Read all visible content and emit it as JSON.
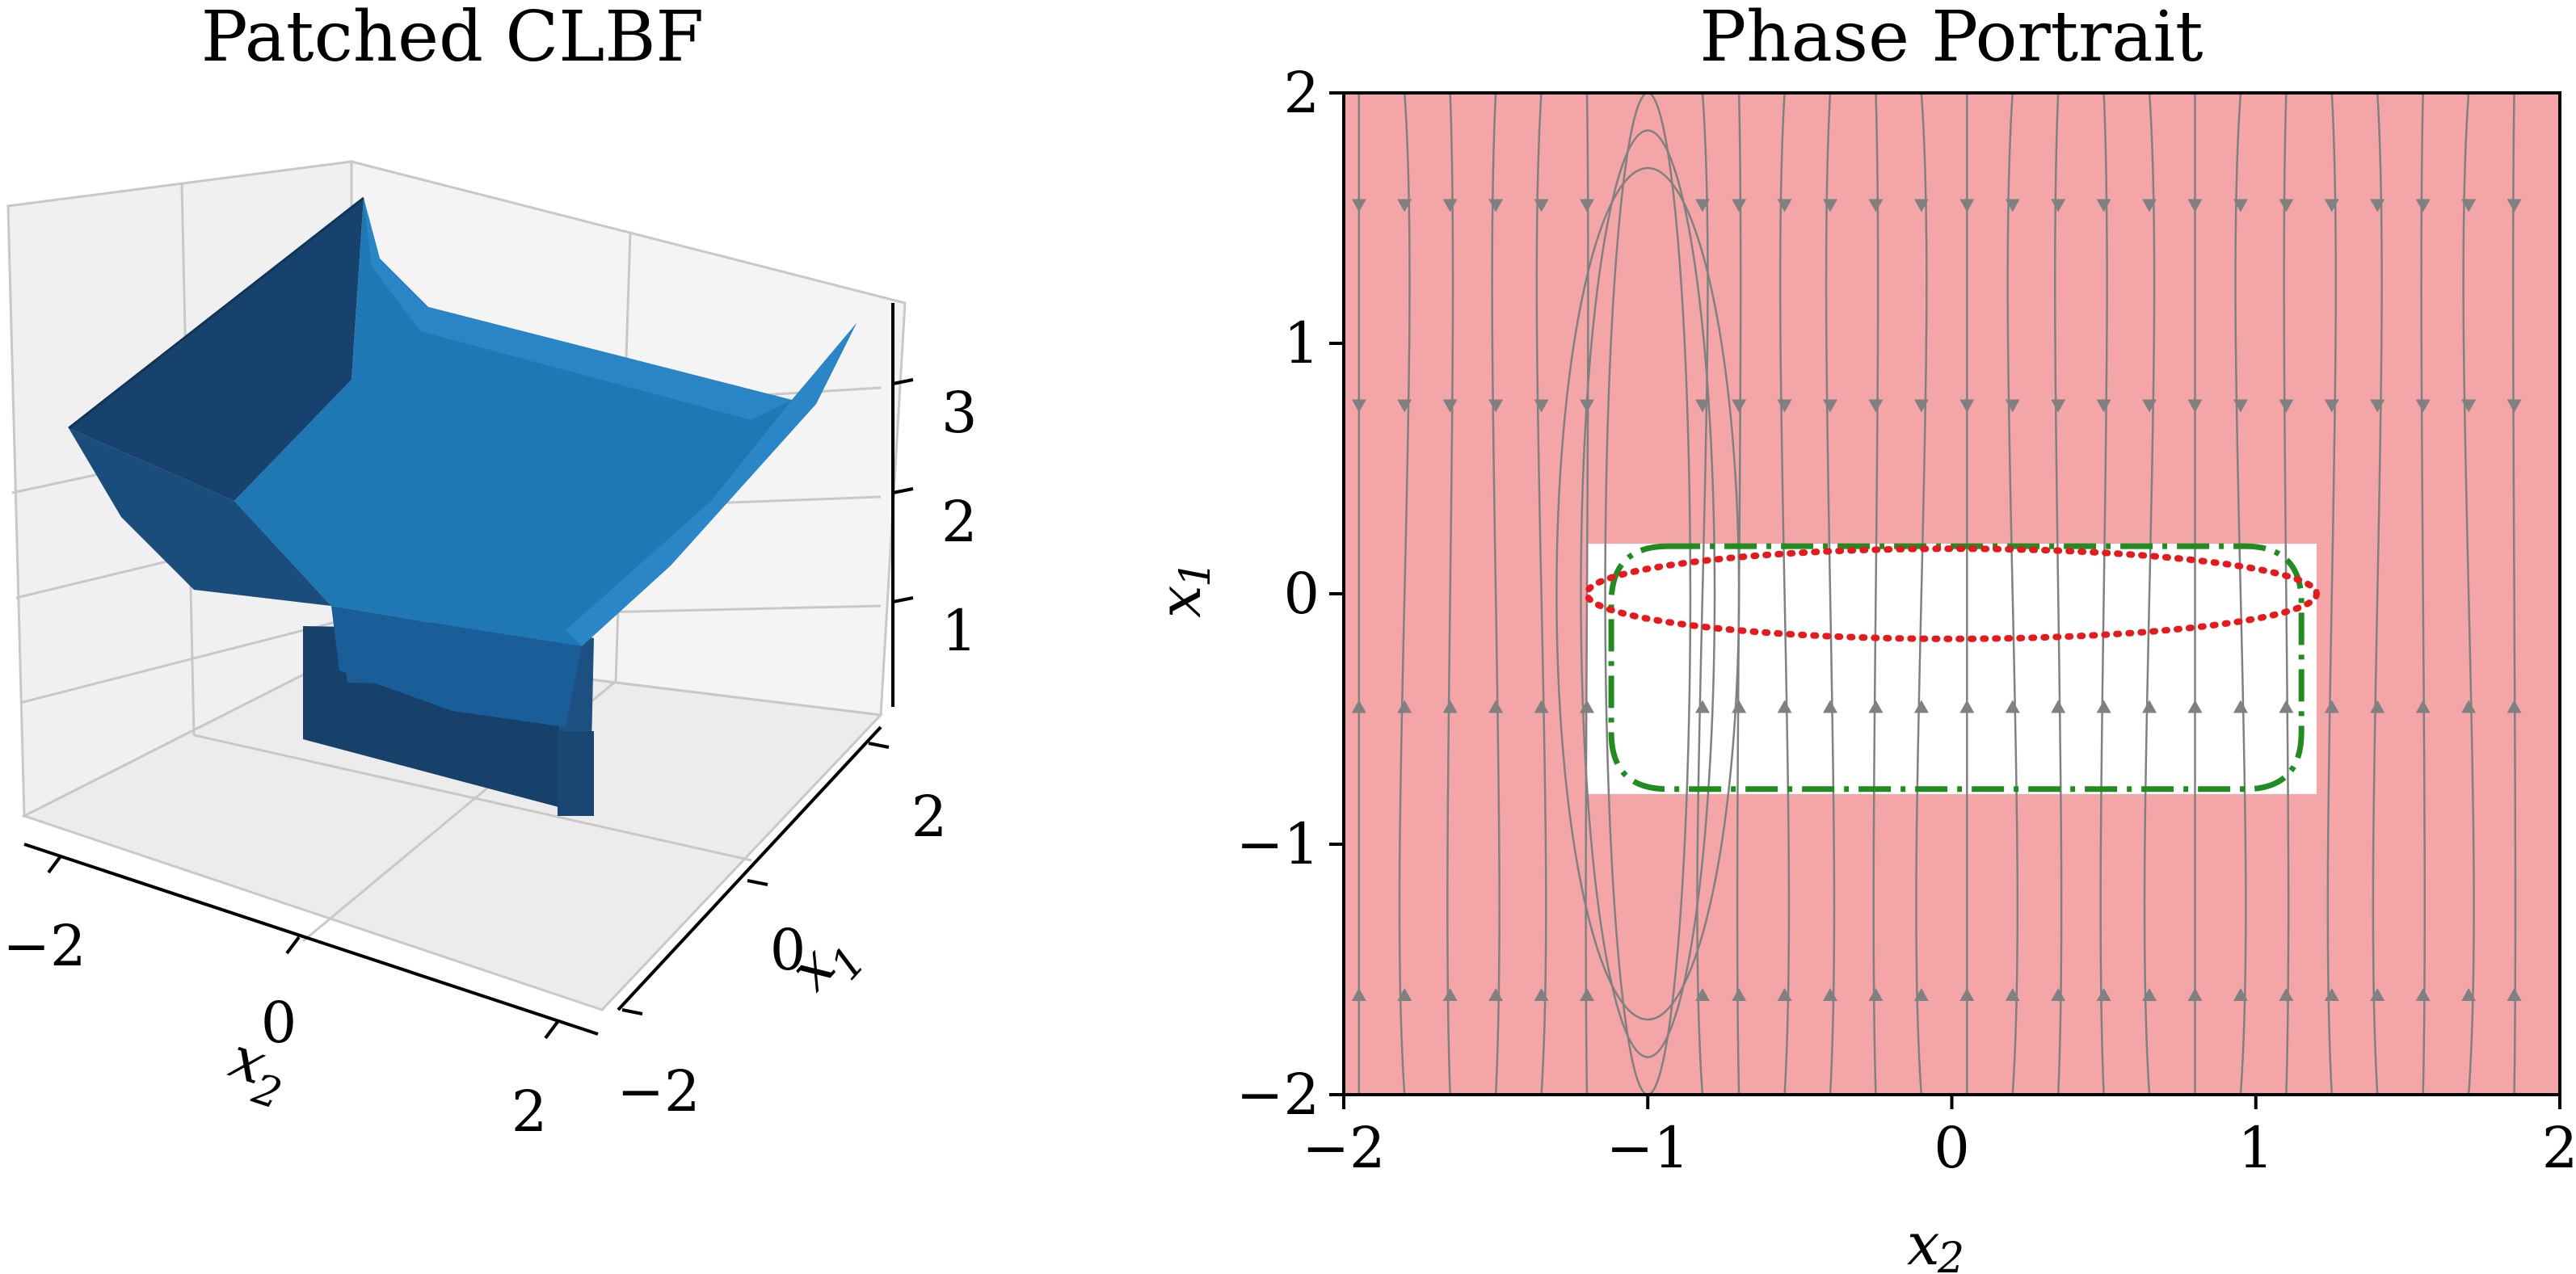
{
  "chart_data": [
    {
      "type": "surface3d",
      "title": "Patched CLBF",
      "xlabel": "x_2",
      "ylabel": "x_1",
      "x_ticks": [
        "−2",
        "0",
        "2"
      ],
      "y_ticks": [
        "−2",
        "0",
        "2"
      ],
      "z_ticks": [
        "1",
        "2",
        "3"
      ],
      "x_range": [
        -2,
        2
      ],
      "y_range": [
        -2,
        2
      ],
      "z_range": [
        0,
        3.6
      ],
      "surface_color": "#1f77b4",
      "description_values": {
        "valley_min_z": 0,
        "back_left_edge_z": 3.5,
        "back_right_edge_z": 3.3,
        "patched_region_x2": [
          -1.2,
          1.2
        ],
        "patched_region_x1": [
          -0.8,
          0.2
        ]
      }
    },
    {
      "type": "streamplot",
      "title": "Phase Portrait",
      "xlabel": "x_2",
      "ylabel": "x_1",
      "x_ticks": [
        "−2",
        "−1",
        "0",
        "1",
        "2"
      ],
      "y_ticks": [
        "−2",
        "−1",
        "0",
        "1",
        "2"
      ],
      "xlim": [
        -2,
        2
      ],
      "ylim": [
        -2,
        2
      ],
      "background_color": "#f4a5a8",
      "safe_region": {
        "x2": [
          -1.2,
          1.2
        ],
        "x1": [
          -0.8,
          0.2
        ],
        "color": "#ffffff"
      },
      "red_dotted_ellipse": {
        "center": [
          0,
          0
        ],
        "semi_x2": 1.2,
        "semi_x1": 0.18,
        "color": "#e41a1c"
      },
      "green_dashdot_loop": {
        "x2": [
          -1.12,
          1.15
        ],
        "x1": [
          -0.78,
          0.19
        ],
        "color": "#228b22"
      },
      "stream_color": "#808080"
    }
  ],
  "labels": {
    "left_xlabel_main": "x",
    "left_xlabel_sub": "2",
    "left_ylabel_main": "x",
    "left_ylabel_sub": "1",
    "right_xlabel_main": "x",
    "right_xlabel_sub": "2",
    "right_ylabel_main": "x",
    "right_ylabel_sub": "1"
  }
}
